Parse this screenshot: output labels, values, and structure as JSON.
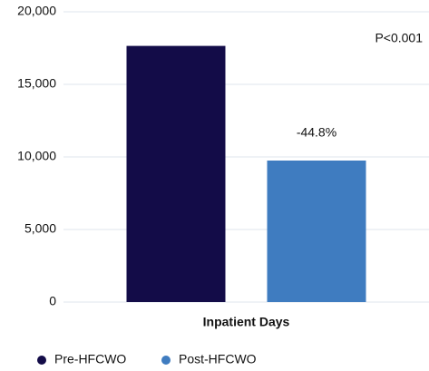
{
  "chart_data": {
    "type": "bar",
    "categories": [
      "Inpatient Days"
    ],
    "series": [
      {
        "name": "Pre-HFCWO",
        "color": "#130c48",
        "values": [
          17650
        ]
      },
      {
        "name": "Post-HFCWO",
        "color": "#3f7cc0",
        "values": [
          9750
        ]
      }
    ],
    "ylim": [
      0,
      20000
    ],
    "yticks": [
      0,
      {
        "value": 5000,
        "label": "5,000"
      },
      {
        "value": 10000,
        "label": "10,000"
      },
      {
        "value": 15000,
        "label": "15,000"
      },
      {
        "value": 20000,
        "label": "20,000"
      }
    ],
    "grid": true,
    "legend": "bottom",
    "annotations": [
      "P<0.001",
      "-44.8%"
    ]
  }
}
